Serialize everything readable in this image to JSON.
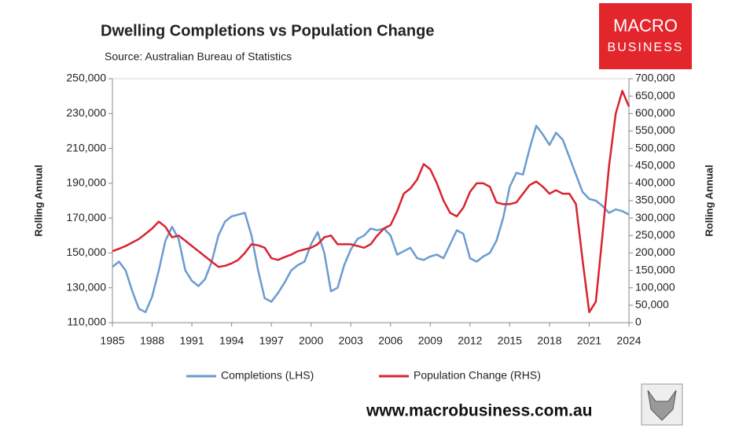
{
  "chart_data": {
    "type": "line",
    "title": "Dwelling Completions vs Population Change",
    "subtitle": "Source: Australian Bureau of Statistics",
    "ylabel": "Rolling Annual",
    "y2label": "Rolling Annual",
    "logo": [
      "MACRO",
      "BUSINESS"
    ],
    "footer": "www.macrobusiness.com.au",
    "x": [
      1985,
      1985.5,
      1986,
      1986.5,
      1987,
      1987.5,
      1988,
      1988.5,
      1989,
      1989.5,
      1990,
      1990.5,
      1991,
      1991.5,
      1992,
      1992.5,
      1993,
      1993.5,
      1994,
      1994.5,
      1995,
      1995.5,
      1996,
      1996.5,
      1997,
      1997.5,
      1998,
      1998.5,
      1999,
      1999.5,
      2000,
      2000.5,
      2001,
      2001.5,
      2002,
      2002.5,
      2003,
      2003.5,
      2004,
      2004.5,
      2005,
      2005.5,
      2006,
      2006.5,
      2007,
      2007.5,
      2008,
      2008.5,
      2009,
      2009.5,
      2010,
      2010.5,
      2011,
      2011.5,
      2012,
      2012.5,
      2013,
      2013.5,
      2014,
      2014.5,
      2015,
      2015.5,
      2016,
      2016.5,
      2017,
      2017.5,
      2018,
      2018.5,
      2019,
      2019.5,
      2020,
      2020.5,
      2021,
      2021.5,
      2022,
      2022.5,
      2023,
      2023.5,
      2024
    ],
    "series": [
      {
        "name": "Completions (LHS)",
        "color": "#6a9bd1",
        "axis": "y",
        "values": [
          142000,
          145000,
          140000,
          128000,
          118000,
          116000,
          125000,
          140000,
          157000,
          165000,
          158000,
          140000,
          134000,
          131000,
          135000,
          145000,
          160000,
          168000,
          171000,
          172000,
          173000,
          160000,
          140000,
          124000,
          122000,
          127000,
          133000,
          140000,
          143000,
          145000,
          155000,
          162000,
          150000,
          128000,
          130000,
          143000,
          152000,
          158000,
          160000,
          164000,
          163000,
          164000,
          160000,
          149000,
          151000,
          153000,
          147000,
          146000,
          148000,
          149000,
          147000,
          155000,
          163000,
          161000,
          147000,
          145000,
          148000,
          150000,
          157000,
          170000,
          188000,
          196000,
          195000,
          210000,
          223000,
          218000,
          212000,
          219000,
          215000,
          205000,
          195000,
          185000,
          181000,
          180000,
          177000,
          173000,
          175000,
          174000,
          172000
        ]
      },
      {
        "name": "Population Change (RHS)",
        "color": "#d9232e",
        "axis": "y2",
        "values": [
          205000,
          212000,
          220000,
          230000,
          240000,
          255000,
          270000,
          290000,
          275000,
          245000,
          250000,
          235000,
          220000,
          205000,
          190000,
          175000,
          160000,
          163000,
          170000,
          180000,
          200000,
          225000,
          222000,
          215000,
          185000,
          180000,
          188000,
          195000,
          205000,
          210000,
          215000,
          225000,
          245000,
          250000,
          225000,
          225000,
          225000,
          220000,
          215000,
          225000,
          250000,
          270000,
          280000,
          320000,
          370000,
          385000,
          410000,
          455000,
          440000,
          400000,
          350000,
          315000,
          305000,
          330000,
          375000,
          400000,
          400000,
          390000,
          345000,
          340000,
          340000,
          345000,
          370000,
          395000,
          405000,
          390000,
          370000,
          380000,
          370000,
          370000,
          340000,
          180000,
          30000,
          60000,
          250000,
          450000,
          600000,
          665000,
          620000
        ]
      }
    ],
    "xlim": [
      1985,
      2024
    ],
    "xticks": [
      1985,
      1988,
      1991,
      1994,
      1997,
      2000,
      2003,
      2006,
      2009,
      2012,
      2015,
      2018,
      2021,
      2024
    ],
    "ylim": [
      110000,
      250000
    ],
    "yticks": [
      {
        "value": 110000,
        "label": "110,000"
      },
      {
        "value": 130000,
        "label": "130,000"
      },
      {
        "value": 150000,
        "label": "150,000"
      },
      {
        "value": 170000,
        "label": "170,000"
      },
      {
        "value": 190000,
        "label": "190,000"
      },
      {
        "value": 210000,
        "label": "210,000"
      },
      {
        "value": 230000,
        "label": "230,000"
      },
      {
        "value": 250000,
        "label": "250,000"
      }
    ],
    "y2lim": [
      0,
      700000
    ],
    "y2ticks": [
      0,
      {
        "value": 50000,
        "label": "50,000"
      },
      {
        "value": 100000,
        "label": "100,000"
      },
      {
        "value": 150000,
        "label": "150,000"
      },
      {
        "value": 200000,
        "label": "200,000"
      },
      {
        "value": 250000,
        "label": "250,000"
      },
      {
        "value": 300000,
        "label": "300,000"
      },
      {
        "value": 350000,
        "label": "350,000"
      },
      {
        "value": 400000,
        "label": "400,000"
      },
      {
        "value": 450000,
        "label": "450,000"
      },
      {
        "value": 500000,
        "label": "500,000"
      },
      {
        "value": 550000,
        "label": "550,000"
      },
      {
        "value": 600000,
        "label": "600,000"
      },
      {
        "value": 650000,
        "label": "650,000"
      },
      {
        "value": 700000,
        "label": "700,000"
      }
    ],
    "grid": false,
    "legend": "bottom"
  }
}
